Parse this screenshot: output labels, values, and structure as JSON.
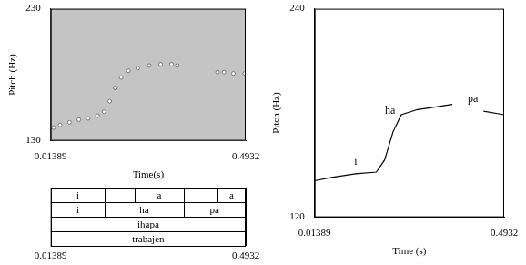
{
  "chart_data": [
    {
      "type": "scatter",
      "y_label": "Pitch (Hz)",
      "x_label": "Time(s)",
      "xlim": [
        0.01389,
        0.4932
      ],
      "xticks": [
        0.01389,
        0.4932
      ],
      "ylim": [
        130,
        230
      ],
      "yticks": [
        130,
        230
      ],
      "grid": false,
      "marker": "circle",
      "color": "#ffffff",
      "x": [
        0.021,
        0.037,
        0.06,
        0.083,
        0.106,
        0.129,
        0.145,
        0.159,
        0.173,
        0.187,
        0.205,
        0.228,
        0.256,
        0.284,
        0.311,
        0.325,
        0.37,
        0.424,
        0.44,
        0.463,
        0.491
      ],
      "values": [
        140,
        142,
        144,
        146,
        147,
        149,
        152,
        160,
        170,
        178,
        183,
        185,
        187,
        188,
        188,
        187,
        null,
        182,
        182,
        181,
        181
      ],
      "text_grid": {
        "tiers": [
          {
            "boundaries": [
              0.01389,
              0.147,
              0.221,
              0.34,
              0.424,
              0.4932
            ],
            "labels": [
              "i",
              null,
              "a",
              null,
              "a"
            ]
          },
          {
            "boundaries": [
              0.01389,
              0.147,
              0.34,
              0.4932
            ],
            "labels": [
              "i",
              "ha",
              "pa"
            ]
          },
          {
            "boundaries": [
              0.01389,
              0.4932
            ],
            "labels": [
              "ihapa"
            ]
          },
          {
            "boundaries": [
              0.01389,
              0.4932
            ],
            "labels": [
              "trabajen"
            ]
          }
        ]
      }
    },
    {
      "type": "line",
      "y_label": "Pitch (Hz)",
      "x_label": "Time (s)",
      "xlim": [
        0.01389,
        0.4932
      ],
      "xticks": [
        0.01389,
        0.4932
      ],
      "ylim": [
        120,
        240
      ],
      "yticks": [
        120,
        240
      ],
      "grid": false,
      "line_style": "solid",
      "color": "#000000",
      "x": [
        0.01389,
        0.06,
        0.118,
        0.17,
        0.191,
        0.212,
        0.233,
        0.274,
        0.306,
        0.362,
        0.4,
        0.441,
        0.4932
      ],
      "values": [
        141,
        143,
        145,
        146,
        153,
        169,
        179,
        182,
        183,
        185,
        null,
        181,
        179
      ],
      "annotations": [
        {
          "text": "i",
          "x": 0.118,
          "y": 152
        },
        {
          "text": "ha",
          "x": 0.205,
          "y": 181
        },
        {
          "text": "pa",
          "x": 0.414,
          "y": 188
        }
      ]
    }
  ]
}
